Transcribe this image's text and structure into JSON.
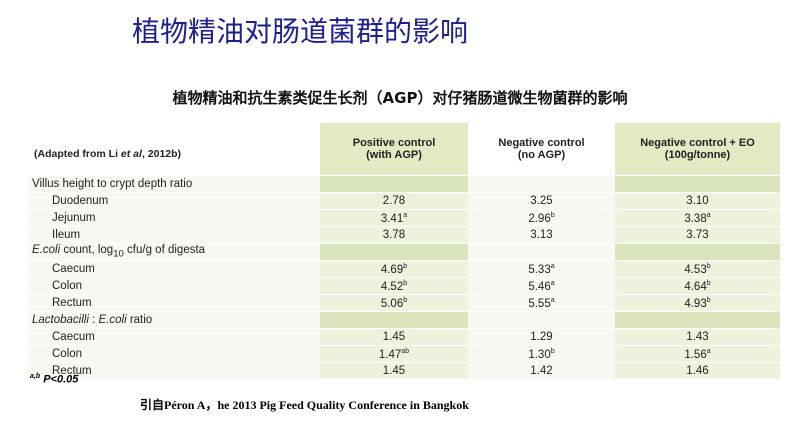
{
  "header": {
    "title": "植物精油对肠道菌群的影响",
    "subtitle": "植物精油和抗生素类促生长剂（AGP）对仔猪肠道微生物菌群的影响"
  },
  "table": {
    "note": [
      {
        "text": "(Adapted from Li "
      },
      {
        "text": "et al",
        "style": "italic"
      },
      {
        "text": ", 2012b)"
      }
    ],
    "columns": [
      [
        "Positive control",
        "(with AGP)"
      ],
      [
        "Negative control",
        "(no AGP)"
      ],
      [
        "Negative control + EO",
        "(100g/tonne)"
      ]
    ],
    "sections": [
      {
        "title": [
          {
            "text": "Villus height to crypt depth ratio"
          }
        ],
        "rows": [
          {
            "label": "Duodenum",
            "cells": [
              {
                "value": "2.78"
              },
              {
                "value": "3.25"
              },
              {
                "value": "3.10"
              }
            ]
          },
          {
            "label": "Jejunum",
            "cells": [
              {
                "value": "3.41",
                "sup": "a"
              },
              {
                "value": "2.96",
                "sup": "b"
              },
              {
                "value": "3.38",
                "sup": "a"
              }
            ]
          },
          {
            "label": "Ileum",
            "cells": [
              {
                "value": "3.78"
              },
              {
                "value": "3.13"
              },
              {
                "value": "3.73"
              }
            ]
          }
        ]
      },
      {
        "title": [
          {
            "text": "E.coli",
            "style": "italic"
          },
          {
            "text": " count, log"
          },
          {
            "text": "10",
            "style": "sub"
          },
          {
            "text": " cfu/g of digesta"
          }
        ],
        "rows": [
          {
            "label": "Caecum",
            "cells": [
              {
                "value": "4.69",
                "sup": "b"
              },
              {
                "value": "5.33",
                "sup": "a"
              },
              {
                "value": "4.53",
                "sup": "b"
              }
            ]
          },
          {
            "label": "Colon",
            "cells": [
              {
                "value": "4.52",
                "sup": "b"
              },
              {
                "value": "5.46",
                "sup": "a"
              },
              {
                "value": "4.64",
                "sup": "b"
              }
            ]
          },
          {
            "label": "Rectum",
            "cells": [
              {
                "value": "5.06",
                "sup": "b"
              },
              {
                "value": "5.55",
                "sup": "a"
              },
              {
                "value": "4.93",
                "sup": "b"
              }
            ]
          }
        ]
      },
      {
        "title": [
          {
            "text": "Lactobacilli",
            "style": "italic"
          },
          {
            "text": " : "
          },
          {
            "text": "E.coli",
            "style": "italic"
          },
          {
            "text": " ratio"
          }
        ],
        "rows": [
          {
            "label": "Caecum",
            "cells": [
              {
                "value": "1.45"
              },
              {
                "value": "1.29"
              },
              {
                "value": "1.43"
              }
            ]
          },
          {
            "label": "Colon",
            "cells": [
              {
                "value": "1.47",
                "sup": "ab"
              },
              {
                "value": "1.30",
                "sup": "b"
              },
              {
                "value": "1.56",
                "sup": "a"
              }
            ]
          },
          {
            "label": "Rectum",
            "cells": [
              {
                "value": "1.45"
              },
              {
                "value": "1.42"
              },
              {
                "value": "1.46"
              }
            ]
          }
        ]
      }
    ]
  },
  "footnote": {
    "sup": "a,b",
    "text": "P<0.05"
  },
  "source": "引自Péron A，he 2013 Pig Feed Quality Conference in Bangkok"
}
